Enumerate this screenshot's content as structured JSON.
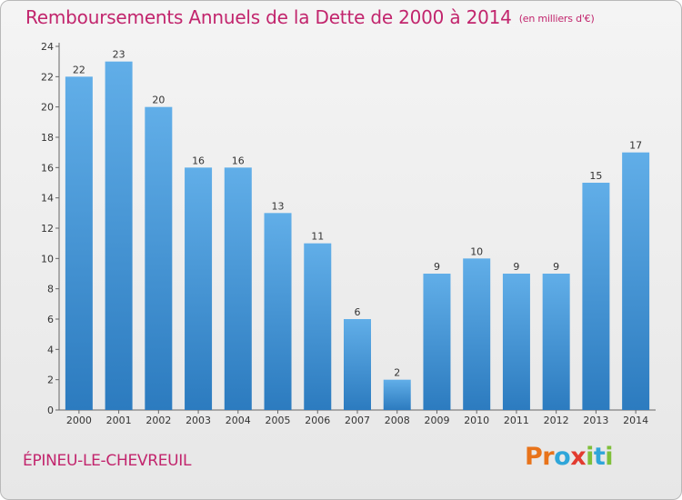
{
  "header": {
    "title": "Remboursements Annuels de la Dette de 2000 à 2014",
    "subtitle": "(en milliers d'€)"
  },
  "footer": {
    "commune": "ÉPINEU-LE-CHEVREUIL"
  },
  "logo": {
    "text": "Proxiti",
    "letters": [
      {
        "ch": "P",
        "color": "#e8731a"
      },
      {
        "ch": "r",
        "color": "#e8731a"
      },
      {
        "ch": "o",
        "color": "#2fa6d9"
      },
      {
        "ch": "x",
        "color": "#e23b2f"
      },
      {
        "ch": "i",
        "color": "#7fbf3a"
      },
      {
        "ch": "t",
        "color": "#2fa6d9"
      },
      {
        "ch": "i",
        "color": "#7fbf3a"
      }
    ]
  },
  "colors": {
    "accent": "#c2256d",
    "bar_top": "#61aee8",
    "bar_bottom": "#2c7bbf"
  },
  "chart_data": {
    "type": "bar",
    "title": "Remboursements Annuels de la Dette de 2000 à 2014",
    "categories": [
      "2000",
      "2001",
      "2002",
      "2003",
      "2004",
      "2005",
      "2006",
      "2007",
      "2008",
      "2009",
      "2010",
      "2011",
      "2012",
      "2013",
      "2014"
    ],
    "values": [
      22,
      23,
      20,
      16,
      16,
      13,
      11,
      6,
      2,
      9,
      10,
      9,
      9,
      15,
      17
    ],
    "ylim": [
      0,
      24
    ],
    "yticks": [
      0,
      2,
      4,
      6,
      8,
      10,
      12,
      14,
      16,
      18,
      20,
      22,
      24
    ],
    "grid": false,
    "legend": "none"
  }
}
